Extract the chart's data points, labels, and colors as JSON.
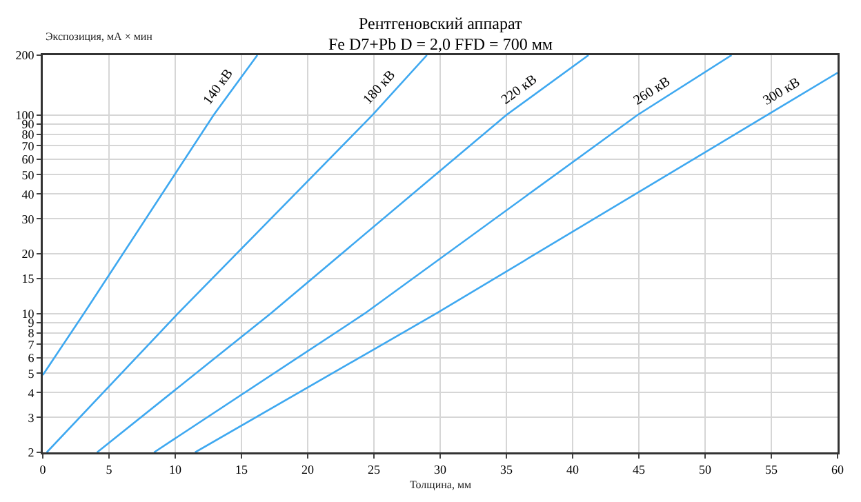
{
  "chart_data": {
    "type": "line",
    "title": "Рентгеновский аппарат",
    "subtitle": "Fe D7+Pb D = 2,0 FFD = 700 мм",
    "xlabel": "Толщина, мм",
    "ylabel": "Экспозиция, мА × мин",
    "log": "y",
    "grid": true,
    "legend": false,
    "marker": "none",
    "line_style": "solid",
    "xlim": [
      0,
      60
    ],
    "xticks": [
      0,
      5,
      10,
      15,
      20,
      25,
      30,
      35,
      40,
      45,
      50,
      55,
      60
    ],
    "ylim": [
      2,
      200
    ],
    "yticks": [
      2,
      3,
      4,
      5,
      6,
      7,
      8,
      9,
      10,
      15,
      20,
      30,
      40,
      50,
      60,
      70,
      80,
      90,
      100,
      200
    ],
    "series": [
      {
        "name": "140 кВ",
        "color": "#3ea8f0",
        "x": [
          0,
          3.1,
          12.9,
          16.2
        ],
        "values": [
          4.9,
          10,
          100,
          200
        ]
      },
      {
        "name": "180 кВ",
        "color": "#3ea8f0",
        "x": [
          0.3,
          10.2,
          24.9,
          29
        ],
        "values": [
          2,
          10,
          100,
          200
        ]
      },
      {
        "name": "220 кВ",
        "color": "#3ea8f0",
        "x": [
          4.1,
          17.2,
          35,
          41.2
        ],
        "values": [
          2,
          10,
          100,
          200
        ]
      },
      {
        "name": "260 кВ",
        "color": "#3ea8f0",
        "x": [
          8.4,
          24.3,
          44.9,
          52
        ],
        "values": [
          2,
          10,
          100,
          200
        ]
      },
      {
        "name": "300 кВ",
        "color": "#3ea8f0",
        "x": [
          11.5,
          29.7,
          54.7,
          60
        ],
        "values": [
          2,
          10,
          100,
          163
        ]
      }
    ]
  }
}
